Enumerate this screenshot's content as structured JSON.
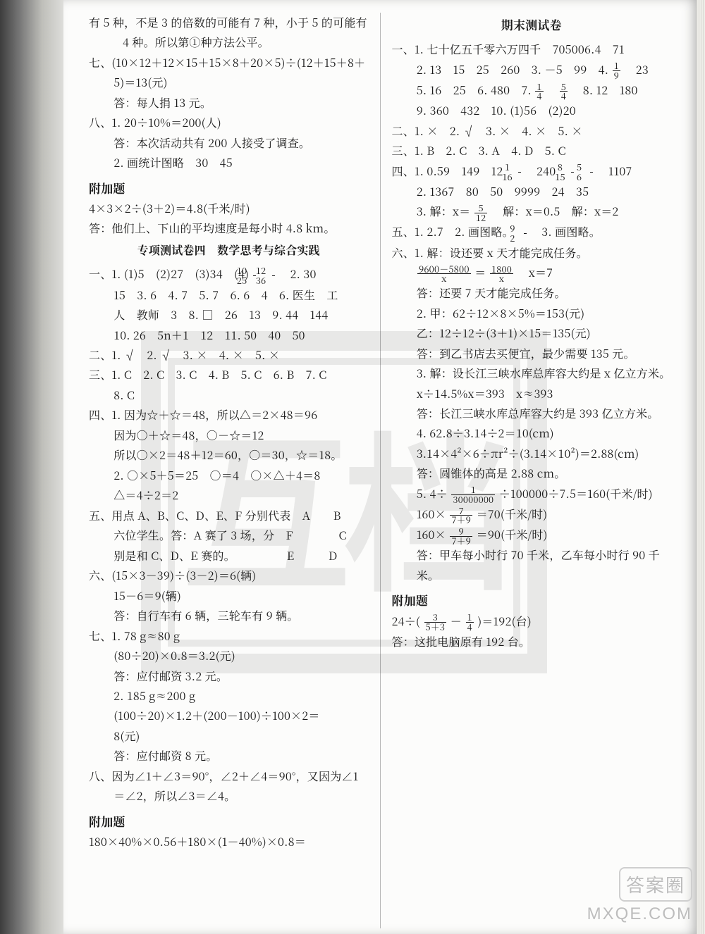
{
  "watermark": "互档",
  "brand": {
    "name": "答案圈",
    "url": "MXQE.COM"
  },
  "left": {
    "p1": "有 5 种，不是 3 的倍数的可能有 7 种，小于 5 的可能有 4 种。所以第①种方法公平。",
    "q7_expr": "七、(10×12＋12×15＋15×8＋20×5)÷(12＋15＋8＋5)＝13(元)",
    "q7_ans": "答：每人捐 13 元。",
    "q8_1": "八、1. 20÷10%＝200(人)",
    "q8_1_ans": "答：本次活动共有 200 人接受了调查。",
    "q8_2": "2. 画统计图略　30　45",
    "extra_hdr": "附加题",
    "extra_expr": "4×3×2÷(3＋2)＝4.8(千米/时)",
    "extra_ans": "答：他们上、下山的平均速度是每小时 4.8 km。",
    "sub_hdr": "专项测试卷四　数学思考与综合实践",
    "s1a": "一、1. (1)5　(2)27　(3)34　(4)",
    "s1a_f1n": "10",
    "s1a_f1d": "25",
    "s1a_f2n": "12",
    "s1a_f2d": "36",
    "s1a_tail": "　2. 30",
    "s1b": "15　3. 6　4. 7　5. 7　6. 6　4　6. 医生　工",
    "s1c": "人　教师　3　8. □　26　13　9. 44　144",
    "s1d": "10. 26　5n＋1　12　11. 50　40　50",
    "s2": "二、1. √　2. √　3. ×　4. ×　5. ×",
    "s3a": "三、1. C　2. C　3. C　4. B　5. C　6. B　7. C",
    "s3b": "8. C",
    "s4a": "四、1. 因为☆＋☆＝48，所以△＝2×48＝96",
    "s4b": "因为○＋☆＝48，○－☆＝12",
    "s4c": "所以○×2＝48＋12＝60，○＝30，☆＝18。",
    "s4d": "2. ○×5＋5＝25　○＝4　○×△＋4＝8",
    "s4e": "△＝4÷2＝2",
    "s5a": "五、用点 A、B、C、D、E、F 分别代表　A　　B",
    "s5b": "六位学生。答：A 赛了 3 场，分　F　　　　C",
    "s5c": "别是和 C、D、E 赛的。　　　　　E　　　D",
    "s6a": "六、(15×3－39)÷(3－2)＝6(辆)",
    "s6b": "15－6＝9(辆)",
    "s6c": "答：自行车有 6 辆，三轮车有 9 辆。",
    "s7a": "七、1. 78 g≈80 g",
    "s7b": "(80÷20)×0.8＝3.2(元)",
    "s7c": "答：应付邮资 3.2 元。",
    "s7d": "2. 185 g≈200 g",
    "s7e": "(100÷20)×1.2＋(200－100)÷100×2＝",
    "s7f": "8(元)",
    "s7g": "答：应付邮资 8 元。",
    "s8": "八、因为∠1＋∠3＝90°，∠2＋∠4＝90°，又因为∠1＝∠2，所以∠3＝∠4。",
    "extra2_hdr": "附加题",
    "extra2": "180×40%×0.56＋180×(1－40%)×0.8＝"
  },
  "right": {
    "hdr": "期末测试卷",
    "r1a": "一、1. 七十亿五千零六万四千　705006.4　71",
    "r1b": "2. 13　15　25　260　3. －5　99　4. ",
    "r1b_fn": "1",
    "r1b_fd": "9",
    "r1b_tail": "　23",
    "r1c_pre": "5. 16　25　6. 480　7. ",
    "r1c_f1n": "1",
    "r1c_f1d": "4",
    "r1c_f2n": "5",
    "r1c_f2d": "4",
    "r1c_post": "　8. 12　180",
    "r1d": "9. 360　432　10. (1)56　(2)20",
    "r2": "二、1. ×　2. √　3. ×　4. ×　5. ×",
    "r3": "三、1. B　2. C　3. A　4. D　5. C",
    "r4a_pre": "四、1. 0.59　149　12　",
    "r4a_f1n": "1",
    "r4a_f1d": "16",
    "r4a_mid": "　240　",
    "r4a_f2n": "8",
    "r4a_f2d": "15",
    "r4a_f3n": "5",
    "r4a_f3d": "6",
    "r4a_post": "　1107",
    "r4b": "2. 1367　80　50　9999　24　35",
    "r4c_pre": "3. 解：x＝",
    "r4c_fn": "5",
    "r4c_fd": "12",
    "r4c_post": "　解：x＝0.5　解：x＝2",
    "r5_pre": "五、1. 2.7　2. 画图略。　",
    "r5_fn": "9",
    "r5_fd": "2",
    "r5_post": "　3. 画图略。",
    "r6a": "六、1. 解：设还要 x 天才能完成任务。",
    "r6b_pre": "",
    "r6b_f1n": "9600－5800",
    "r6b_f1d": "x",
    "r6b_eq": "＝",
    "r6b_f2n": "1800",
    "r6b_f2d": "x",
    "r6b_post": "　x＝7",
    "r6c": "答：还要 7 天才能完成任务。",
    "r6d": "2. 甲：62÷12×8×5%＝153(元)",
    "r6e": "乙：12÷12÷(3＋1)×15＝135(元)",
    "r6f": "答：到乙书店去买便宜，最少需要 135 元。",
    "r6g": "3. 解：设长江三峡水库总库容大约是 x 亿立方米。",
    "r6h": "x÷14.5%x＝393　x≈393",
    "r6i": "答：长江三峡水库总库容大约是 393 亿立方米。",
    "r6j": "4. 62.8÷3.14÷2＝10(cm)",
    "r6k": "3.14×4²×6÷πr²÷(3.14×10²)＝2.88(cm)",
    "r6l": "答：圆锥体的高是 2.88 cm。",
    "r6m_pre": "5. 4÷",
    "r6m_fn": "1",
    "r6m_fd": "30000000",
    "r6m_post": "÷100000÷7.5＝160(千米/时)",
    "r6n_pre": "160×",
    "r6n_fn": "7",
    "r6n_fd": "7＋9",
    "r6n_post": "＝70(千米/时)",
    "r6o_pre": "160×",
    "r6o_fn": "9",
    "r6o_fd": "7＋9",
    "r6o_post": "＝90(千米/时)",
    "r6p": "答：甲车每小时行 70 千米，乙车每小时行 90 千米。",
    "rextra_hdr": "附加题",
    "rextra_pre": "24÷(",
    "rextra_f1n": "3",
    "rextra_f1d": "5＋3",
    "rextra_mid": "－",
    "rextra_f2n": "1",
    "rextra_f2d": "4",
    "rextra_post": ")＝192(台)",
    "rextra_ans": "答：这批电脑原有 192 台。"
  }
}
